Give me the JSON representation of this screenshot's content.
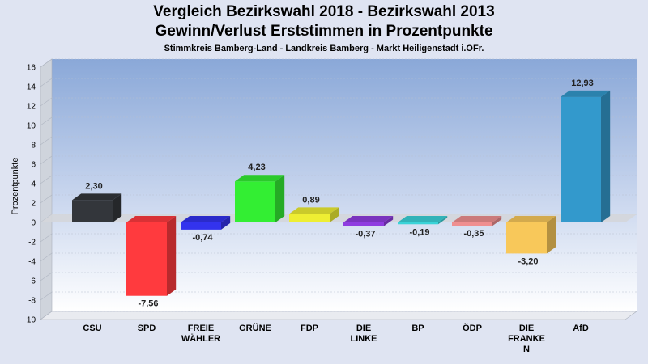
{
  "chart_data": {
    "type": "bar",
    "title": "Vergleich Bezirkswahl 2018 - Bezirkswahl 2013",
    "subtitle": "Gewinn/Verlust Erststimmen in Prozentpunkte",
    "subsubtitle": "Stimmkreis Bamberg-Land - Landkreis Bamberg - Markt Heiligenstadt i.OFr.",
    "ylabel": "Prozentpunkte",
    "ylim": [
      -10,
      16
    ],
    "yticks": [
      -10,
      -8,
      -6,
      -4,
      -2,
      0,
      2,
      4,
      6,
      8,
      10,
      12,
      14,
      16
    ],
    "grid": true,
    "categories": [
      [
        "CSU"
      ],
      [
        "SPD"
      ],
      [
        "FREIE",
        "WÄHLER"
      ],
      [
        "GRÜNE"
      ],
      [
        "FDP"
      ],
      [
        "DIE",
        "LINKE"
      ],
      [
        "BP"
      ],
      [
        "ÖDP"
      ],
      [
        "DIE",
        "FRANKE",
        "N"
      ],
      [
        "AfD"
      ]
    ],
    "values": [
      2.3,
      -7.56,
      -0.74,
      4.23,
      0.89,
      -0.37,
      -0.19,
      -0.35,
      -3.2,
      12.93
    ],
    "value_labels": [
      "2,30",
      "-7,56",
      "-0,74",
      "4,23",
      "0,89",
      "-0,37",
      "-0,19",
      "-0,35",
      "-3,20",
      "12,93"
    ],
    "colors": [
      "#33363b",
      "#ff3a3e",
      "#3333ee",
      "#33ee33",
      "#eeee33",
      "#8f3de0",
      "#3ad3d8",
      "#ef8f90",
      "#f8c85a",
      "#3399cc"
    ]
  }
}
